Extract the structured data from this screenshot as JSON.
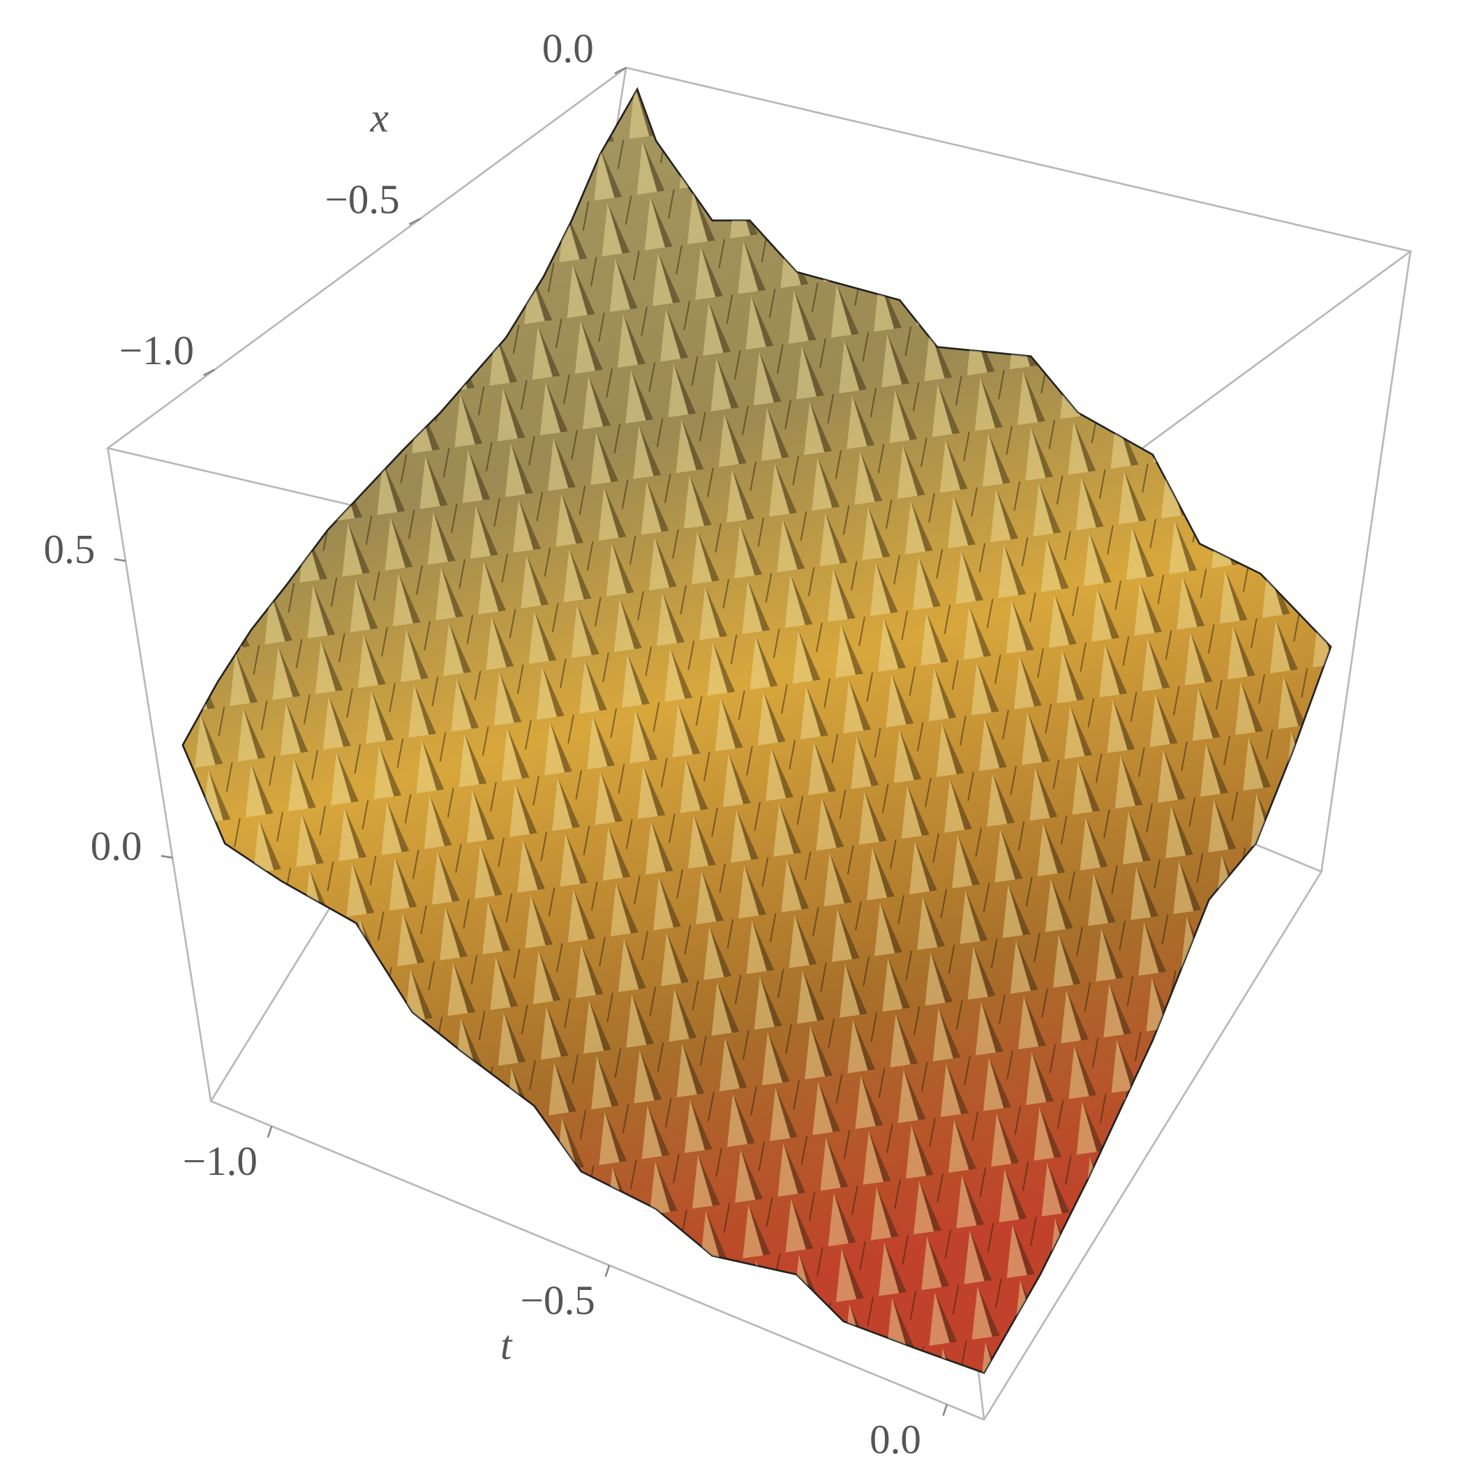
{
  "chart_data": {
    "type": "surface3d",
    "x_label": "x",
    "t_label": "t",
    "xlim": [
      -1.26,
      0
    ],
    "xticks": [
      {
        "value": 0,
        "label": "0.0"
      },
      {
        "value": -0.5,
        "label": "−0.5"
      },
      {
        "value": -1,
        "label": "−1.0"
      }
    ],
    "tlim": [
      -1.09,
      0.055
    ],
    "tticks": [
      {
        "value": -1,
        "label": "−1.0"
      },
      {
        "value": -0.5,
        "label": "−0.5"
      },
      {
        "value": 0,
        "label": "0.0"
      }
    ],
    "zlim": [
      -0.41,
      0.69
    ],
    "zticks": [
      {
        "value": 0.5,
        "label": "0.5"
      },
      {
        "value": 0,
        "label": "0.0"
      }
    ]
  }
}
